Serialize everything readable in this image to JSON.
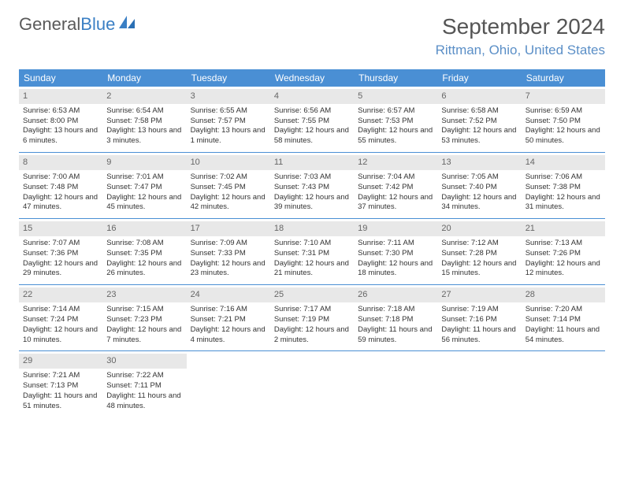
{
  "logo": {
    "text1": "General",
    "text2": "Blue"
  },
  "title": "September 2024",
  "location": "Rittman, Ohio, United States",
  "colors": {
    "header_bg": "#4a8fd4",
    "header_text": "#ffffff",
    "accent": "#5b8fc7",
    "daynum_bg": "#e8e8e8",
    "border": "#4a8fd4",
    "text": "#333333"
  },
  "weekdays": [
    "Sunday",
    "Monday",
    "Tuesday",
    "Wednesday",
    "Thursday",
    "Friday",
    "Saturday"
  ],
  "weeks": [
    [
      {
        "n": "1",
        "sr": "Sunrise: 6:53 AM",
        "ss": "Sunset: 8:00 PM",
        "dl": "Daylight: 13 hours and 6 minutes."
      },
      {
        "n": "2",
        "sr": "Sunrise: 6:54 AM",
        "ss": "Sunset: 7:58 PM",
        "dl": "Daylight: 13 hours and 3 minutes."
      },
      {
        "n": "3",
        "sr": "Sunrise: 6:55 AM",
        "ss": "Sunset: 7:57 PM",
        "dl": "Daylight: 13 hours and 1 minute."
      },
      {
        "n": "4",
        "sr": "Sunrise: 6:56 AM",
        "ss": "Sunset: 7:55 PM",
        "dl": "Daylight: 12 hours and 58 minutes."
      },
      {
        "n": "5",
        "sr": "Sunrise: 6:57 AM",
        "ss": "Sunset: 7:53 PM",
        "dl": "Daylight: 12 hours and 55 minutes."
      },
      {
        "n": "6",
        "sr": "Sunrise: 6:58 AM",
        "ss": "Sunset: 7:52 PM",
        "dl": "Daylight: 12 hours and 53 minutes."
      },
      {
        "n": "7",
        "sr": "Sunrise: 6:59 AM",
        "ss": "Sunset: 7:50 PM",
        "dl": "Daylight: 12 hours and 50 minutes."
      }
    ],
    [
      {
        "n": "8",
        "sr": "Sunrise: 7:00 AM",
        "ss": "Sunset: 7:48 PM",
        "dl": "Daylight: 12 hours and 47 minutes."
      },
      {
        "n": "9",
        "sr": "Sunrise: 7:01 AM",
        "ss": "Sunset: 7:47 PM",
        "dl": "Daylight: 12 hours and 45 minutes."
      },
      {
        "n": "10",
        "sr": "Sunrise: 7:02 AM",
        "ss": "Sunset: 7:45 PM",
        "dl": "Daylight: 12 hours and 42 minutes."
      },
      {
        "n": "11",
        "sr": "Sunrise: 7:03 AM",
        "ss": "Sunset: 7:43 PM",
        "dl": "Daylight: 12 hours and 39 minutes."
      },
      {
        "n": "12",
        "sr": "Sunrise: 7:04 AM",
        "ss": "Sunset: 7:42 PM",
        "dl": "Daylight: 12 hours and 37 minutes."
      },
      {
        "n": "13",
        "sr": "Sunrise: 7:05 AM",
        "ss": "Sunset: 7:40 PM",
        "dl": "Daylight: 12 hours and 34 minutes."
      },
      {
        "n": "14",
        "sr": "Sunrise: 7:06 AM",
        "ss": "Sunset: 7:38 PM",
        "dl": "Daylight: 12 hours and 31 minutes."
      }
    ],
    [
      {
        "n": "15",
        "sr": "Sunrise: 7:07 AM",
        "ss": "Sunset: 7:36 PM",
        "dl": "Daylight: 12 hours and 29 minutes."
      },
      {
        "n": "16",
        "sr": "Sunrise: 7:08 AM",
        "ss": "Sunset: 7:35 PM",
        "dl": "Daylight: 12 hours and 26 minutes."
      },
      {
        "n": "17",
        "sr": "Sunrise: 7:09 AM",
        "ss": "Sunset: 7:33 PM",
        "dl": "Daylight: 12 hours and 23 minutes."
      },
      {
        "n": "18",
        "sr": "Sunrise: 7:10 AM",
        "ss": "Sunset: 7:31 PM",
        "dl": "Daylight: 12 hours and 21 minutes."
      },
      {
        "n": "19",
        "sr": "Sunrise: 7:11 AM",
        "ss": "Sunset: 7:30 PM",
        "dl": "Daylight: 12 hours and 18 minutes."
      },
      {
        "n": "20",
        "sr": "Sunrise: 7:12 AM",
        "ss": "Sunset: 7:28 PM",
        "dl": "Daylight: 12 hours and 15 minutes."
      },
      {
        "n": "21",
        "sr": "Sunrise: 7:13 AM",
        "ss": "Sunset: 7:26 PM",
        "dl": "Daylight: 12 hours and 12 minutes."
      }
    ],
    [
      {
        "n": "22",
        "sr": "Sunrise: 7:14 AM",
        "ss": "Sunset: 7:24 PM",
        "dl": "Daylight: 12 hours and 10 minutes."
      },
      {
        "n": "23",
        "sr": "Sunrise: 7:15 AM",
        "ss": "Sunset: 7:23 PM",
        "dl": "Daylight: 12 hours and 7 minutes."
      },
      {
        "n": "24",
        "sr": "Sunrise: 7:16 AM",
        "ss": "Sunset: 7:21 PM",
        "dl": "Daylight: 12 hours and 4 minutes."
      },
      {
        "n": "25",
        "sr": "Sunrise: 7:17 AM",
        "ss": "Sunset: 7:19 PM",
        "dl": "Daylight: 12 hours and 2 minutes."
      },
      {
        "n": "26",
        "sr": "Sunrise: 7:18 AM",
        "ss": "Sunset: 7:18 PM",
        "dl": "Daylight: 11 hours and 59 minutes."
      },
      {
        "n": "27",
        "sr": "Sunrise: 7:19 AM",
        "ss": "Sunset: 7:16 PM",
        "dl": "Daylight: 11 hours and 56 minutes."
      },
      {
        "n": "28",
        "sr": "Sunrise: 7:20 AM",
        "ss": "Sunset: 7:14 PM",
        "dl": "Daylight: 11 hours and 54 minutes."
      }
    ],
    [
      {
        "n": "29",
        "sr": "Sunrise: 7:21 AM",
        "ss": "Sunset: 7:13 PM",
        "dl": "Daylight: 11 hours and 51 minutes."
      },
      {
        "n": "30",
        "sr": "Sunrise: 7:22 AM",
        "ss": "Sunset: 7:11 PM",
        "dl": "Daylight: 11 hours and 48 minutes."
      },
      null,
      null,
      null,
      null,
      null
    ]
  ]
}
